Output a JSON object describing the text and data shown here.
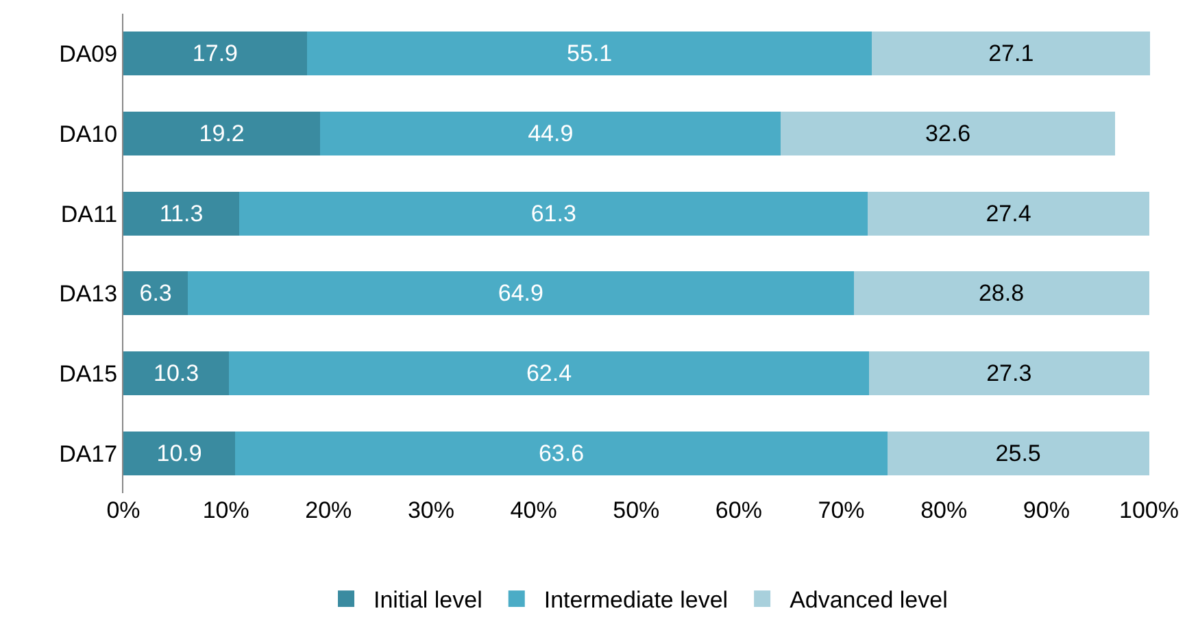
{
  "chart_data": {
    "type": "bar",
    "orientation": "horizontal",
    "stacked": true,
    "categories": [
      "DA09",
      "DA10",
      "DA11",
      "DA13",
      "DA15",
      "DA17"
    ],
    "series": [
      {
        "name": "Initial level",
        "color": "#3a8ba0",
        "values": [
          17.9,
          19.2,
          11.3,
          6.3,
          10.3,
          10.9
        ],
        "value_labels": [
          "17.9",
          "19.2",
          "11.3",
          "6.3",
          "10.3",
          "10.9"
        ]
      },
      {
        "name": "Intermediate level",
        "color": "#4bacc6",
        "values": [
          55.1,
          44.9,
          61.3,
          64.9,
          62.4,
          63.6
        ],
        "value_labels": [
          "55.1",
          "44.9",
          "61.3",
          "64.9",
          "62.4",
          "63.6"
        ]
      },
      {
        "name": "Advanced level",
        "color": "#a8d0dc",
        "values": [
          27.1,
          32.6,
          27.4,
          28.8,
          27.3,
          25.5
        ],
        "value_labels": [
          "27.1",
          "32.6",
          "27.4",
          "28.8",
          "27.3",
          "25.5"
        ]
      }
    ],
    "xlim": [
      0,
      100.1
    ],
    "xticks": [
      {
        "value": 0,
        "label": "0%"
      },
      {
        "value": 10,
        "label": "10%"
      },
      {
        "value": 20,
        "label": "20%"
      },
      {
        "value": 30,
        "label": "30%"
      },
      {
        "value": 40,
        "label": "40%"
      },
      {
        "value": 50,
        "label": "50%"
      },
      {
        "value": 60,
        "label": "60%"
      },
      {
        "value": 70,
        "label": "70%"
      },
      {
        "value": 80,
        "label": "80%"
      },
      {
        "value": 90,
        "label": "90%"
      },
      {
        "value": 100,
        "label": "100%"
      }
    ],
    "legend": "bottom"
  }
}
